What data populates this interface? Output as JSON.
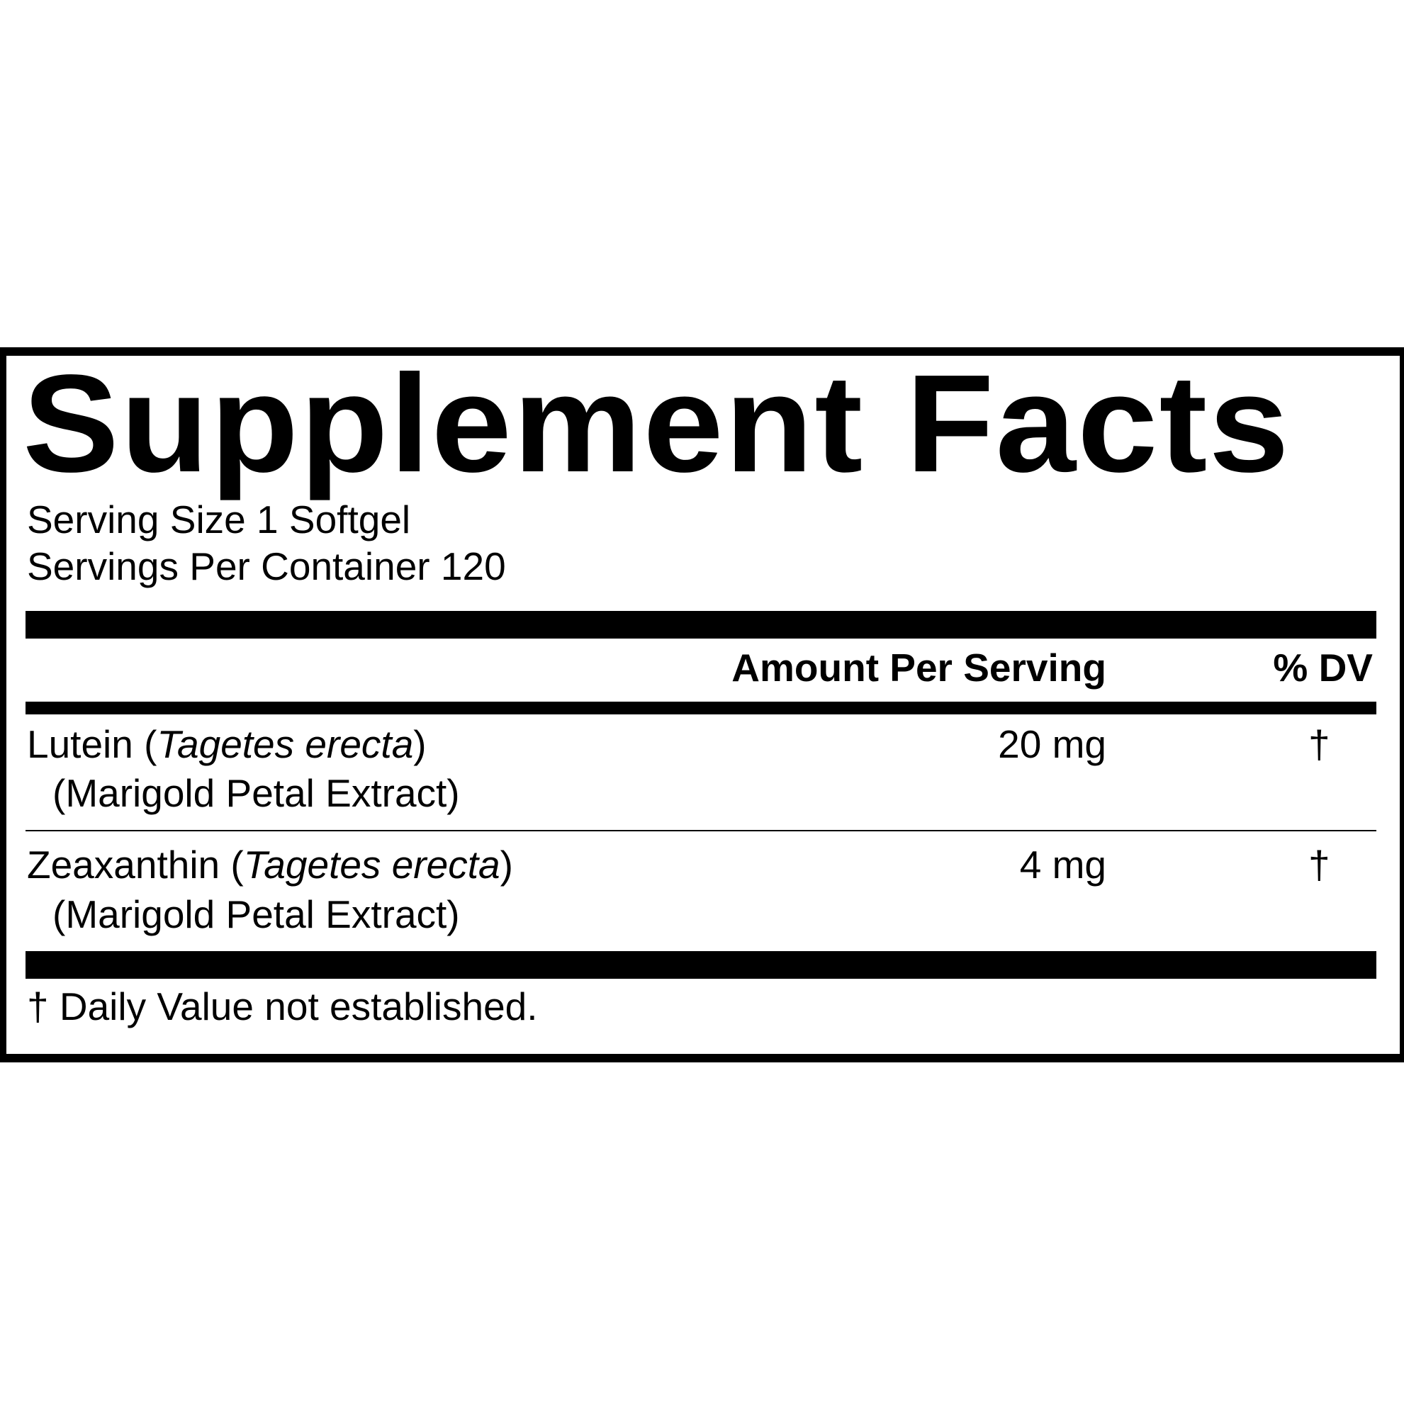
{
  "title": "Supplement Facts",
  "serving_size": "Serving Size 1 Softgel",
  "servings_per_container": "Servings Per Container 120",
  "header": {
    "amount": "Amount Per Serving",
    "dv": "% DV"
  },
  "rows": [
    {
      "name": "Lutein",
      "open": " (",
      "latin": "Tagetes erecta",
      "close": ")",
      "sub": "(Marigold Petal Extract)",
      "amount": "20 mg",
      "dv": "†"
    },
    {
      "name": "Zeaxanthin",
      "open": " (",
      "latin": "Tagetes erecta",
      "close": ")",
      "sub": "(Marigold Petal Extract)",
      "amount": "4 mg",
      "dv": "†"
    }
  ],
  "footnote": "† Daily Value not established."
}
